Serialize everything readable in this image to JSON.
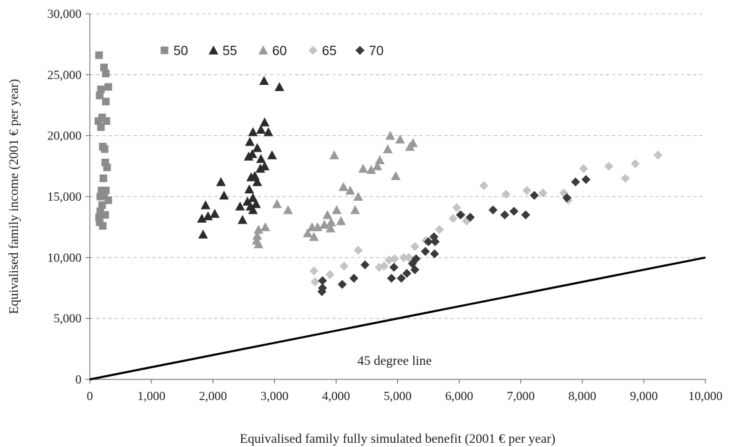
{
  "chart_data": {
    "type": "scatter",
    "title": "",
    "xlabel": "Equivalised family fully simulated benefit (2001 € per year)",
    "ylabel": "Equivalised family income (2001 € per year)",
    "xlim": [
      0,
      10000
    ],
    "ylim": [
      0,
      30000
    ],
    "x_ticks": [
      0,
      1000,
      2000,
      3000,
      4000,
      5000,
      6000,
      7000,
      8000,
      9000,
      10000
    ],
    "x_tick_labels": [
      "0",
      "1,000",
      "2,000",
      "3,000",
      "4,000",
      "5,000",
      "6,000",
      "7,000",
      "8,000",
      "9,000",
      "10,000"
    ],
    "y_ticks": [
      0,
      5000,
      10000,
      15000,
      20000,
      25000,
      30000
    ],
    "y_tick_labels": [
      "0",
      "5,000",
      "10,000",
      "15,000",
      "20,000",
      "25,000",
      "30,000"
    ],
    "grid": "horizontal dashed",
    "legend_position": "top-left",
    "series": [
      {
        "name": "50",
        "marker": "square",
        "color": "#8c8c8c",
        "points": [
          [
            150,
            26600
          ],
          [
            230,
            25600
          ],
          [
            260,
            25100
          ],
          [
            300,
            24000
          ],
          [
            180,
            23800
          ],
          [
            160,
            23300
          ],
          [
            260,
            22800
          ],
          [
            140,
            21200
          ],
          [
            200,
            21500
          ],
          [
            270,
            21200
          ],
          [
            180,
            20700
          ],
          [
            210,
            19100
          ],
          [
            240,
            18900
          ],
          [
            250,
            17800
          ],
          [
            280,
            17400
          ],
          [
            220,
            16500
          ],
          [
            190,
            15500
          ],
          [
            260,
            15500
          ],
          [
            170,
            15000
          ],
          [
            230,
            15100
          ],
          [
            300,
            14700
          ],
          [
            200,
            14300
          ],
          [
            170,
            13800
          ],
          [
            250,
            13500
          ],
          [
            150,
            13300
          ],
          [
            160,
            12900
          ],
          [
            210,
            12600
          ]
        ]
      },
      {
        "name": "55",
        "marker": "triangle",
        "color": "#2b2b2b",
        "points": [
          [
            2830,
            24500
          ],
          [
            3080,
            24000
          ],
          [
            2840,
            21100
          ],
          [
            2650,
            20300
          ],
          [
            2780,
            20500
          ],
          [
            2900,
            20300
          ],
          [
            2600,
            19500
          ],
          [
            2720,
            19000
          ],
          [
            2960,
            18400
          ],
          [
            2580,
            18300
          ],
          [
            2640,
            18500
          ],
          [
            2780,
            18100
          ],
          [
            2840,
            17500
          ],
          [
            2770,
            17300
          ],
          [
            2680,
            16700
          ],
          [
            2620,
            16600
          ],
          [
            2720,
            16200
          ],
          [
            2130,
            16200
          ],
          [
            2590,
            15600
          ],
          [
            2180,
            15100
          ],
          [
            2650,
            14900
          ],
          [
            2560,
            14600
          ],
          [
            2440,
            14200
          ],
          [
            2610,
            14200
          ],
          [
            2700,
            14400
          ],
          [
            1880,
            14300
          ],
          [
            2650,
            13900
          ],
          [
            2030,
            13600
          ],
          [
            1920,
            13400
          ],
          [
            1820,
            13200
          ],
          [
            2480,
            13100
          ],
          [
            1840,
            11900
          ]
        ]
      },
      {
        "name": "60",
        "marker": "triangle",
        "color": "#9a9a9a",
        "points": [
          [
            4880,
            20000
          ],
          [
            5040,
            19700
          ],
          [
            5250,
            19400
          ],
          [
            4840,
            18900
          ],
          [
            5200,
            19100
          ],
          [
            3970,
            18400
          ],
          [
            4710,
            18000
          ],
          [
            4670,
            17500
          ],
          [
            4440,
            17300
          ],
          [
            4570,
            17200
          ],
          [
            4970,
            16700
          ],
          [
            4120,
            15800
          ],
          [
            4230,
            15500
          ],
          [
            3040,
            14400
          ],
          [
            4360,
            15000
          ],
          [
            3220,
            13900
          ],
          [
            4010,
            13900
          ],
          [
            3860,
            13500
          ],
          [
            4310,
            13900
          ],
          [
            3920,
            12900
          ],
          [
            4080,
            13000
          ],
          [
            3810,
            12700
          ],
          [
            3610,
            12500
          ],
          [
            3700,
            12500
          ],
          [
            2850,
            12500
          ],
          [
            3910,
            12400
          ],
          [
            2740,
            12300
          ],
          [
            3540,
            12000
          ],
          [
            2720,
            11800
          ],
          [
            3640,
            11700
          ],
          [
            2710,
            11400
          ],
          [
            2740,
            11100
          ]
        ]
      },
      {
        "name": "65",
        "marker": "diamond",
        "color": "#c4c4c4",
        "points": [
          [
            9230,
            18400
          ],
          [
            8860,
            17700
          ],
          [
            8430,
            17500
          ],
          [
            8020,
            17300
          ],
          [
            8700,
            16500
          ],
          [
            6400,
            15900
          ],
          [
            7100,
            15500
          ],
          [
            7360,
            15300
          ],
          [
            6760,
            15200
          ],
          [
            7700,
            15300
          ],
          [
            7770,
            14700
          ],
          [
            5960,
            14100
          ],
          [
            6040,
            13500
          ],
          [
            5900,
            13200
          ],
          [
            6120,
            13000
          ],
          [
            5680,
            12300
          ],
          [
            5460,
            11400
          ],
          [
            5280,
            10900
          ],
          [
            4360,
            10600
          ],
          [
            5100,
            10000
          ],
          [
            5180,
            10000
          ],
          [
            4950,
            9900
          ],
          [
            5240,
            9800
          ],
          [
            4860,
            9800
          ],
          [
            4780,
            9300
          ],
          [
            4130,
            9300
          ],
          [
            3640,
            8900
          ],
          [
            4700,
            9200
          ],
          [
            3900,
            8600
          ],
          [
            3660,
            8000
          ]
        ]
      },
      {
        "name": "70",
        "marker": "diamond",
        "color": "#3a3a3a",
        "points": [
          [
            8060,
            16400
          ],
          [
            7890,
            16200
          ],
          [
            7220,
            15100
          ],
          [
            7750,
            14900
          ],
          [
            6550,
            13900
          ],
          [
            6890,
            13800
          ],
          [
            6020,
            13500
          ],
          [
            6180,
            13300
          ],
          [
            6740,
            13500
          ],
          [
            7080,
            13500
          ],
          [
            5590,
            11700
          ],
          [
            5500,
            11300
          ],
          [
            5610,
            11300
          ],
          [
            5450,
            10500
          ],
          [
            5600,
            10300
          ],
          [
            5300,
            9900
          ],
          [
            5240,
            9500
          ],
          [
            4940,
            9200
          ],
          [
            4470,
            9400
          ],
          [
            5280,
            9000
          ],
          [
            5150,
            8700
          ],
          [
            4900,
            8300
          ],
          [
            5060,
            8300
          ],
          [
            4290,
            8300
          ],
          [
            4100,
            7800
          ],
          [
            3780,
            8100
          ],
          [
            3780,
            7500
          ],
          [
            3770,
            7200
          ]
        ]
      }
    ],
    "reference_line": {
      "label": "45 degree line",
      "from": [
        0,
        0
      ],
      "to": [
        10000,
        10000
      ],
      "label_at": [
        4950,
        1200
      ]
    }
  }
}
